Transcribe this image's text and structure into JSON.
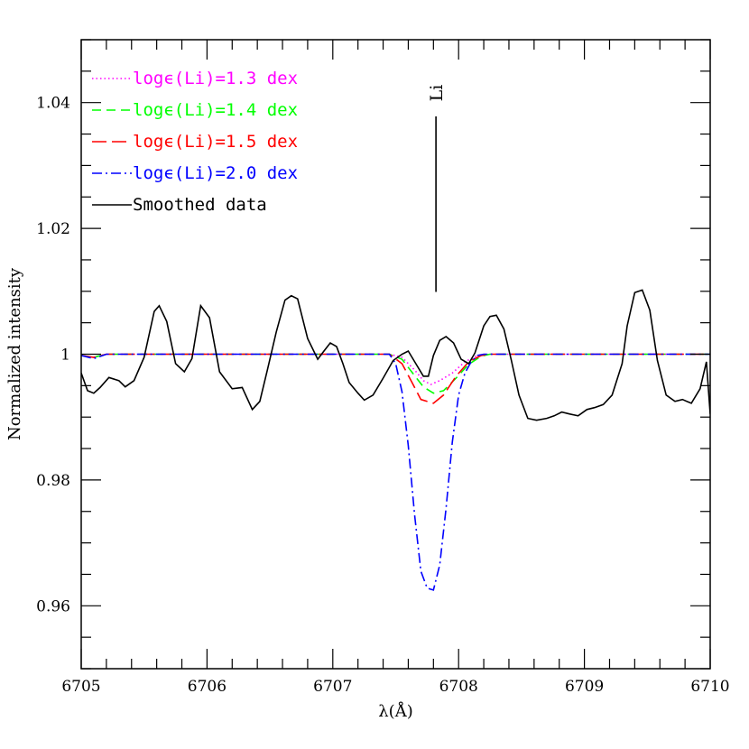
{
  "chart_data": {
    "type": "line",
    "title": "",
    "xlabel": "λ(Å)",
    "ylabel": "Normalized intensity",
    "xlim": [
      6705,
      6710
    ],
    "ylim": [
      0.95,
      1.05
    ],
    "x_ticks": [
      6705,
      6706,
      6707,
      6708,
      6709,
      6710
    ],
    "x_tick_labels": [
      "6705",
      "6706",
      "6707",
      "6708",
      "6709",
      "6710"
    ],
    "y_ticks": [
      0.96,
      0.98,
      1.0,
      1.02,
      1.04
    ],
    "y_tick_labels": [
      "0.96",
      "0.98",
      "1",
      "1.02",
      "1.04"
    ],
    "grid": false,
    "legend_position": "top-left",
    "annotations": [
      {
        "text": "Li",
        "x": 6707.82,
        "line_from": 1.0099,
        "line_to": 1.0378
      }
    ],
    "series": [
      {
        "name": "logϵ(Li)=1.3 dex",
        "color": "#ff00ff",
        "style": "dotted",
        "x": [
          6705.0,
          6705.1,
          6705.2,
          6707.45,
          6707.55,
          6707.65,
          6707.72,
          6707.78,
          6707.85,
          6707.95,
          6708.05,
          6708.15,
          6708.25,
          6710.0
        ],
        "y": [
          0.9998,
          0.9995,
          1.0,
          1.0,
          0.9995,
          0.9975,
          0.9958,
          0.9952,
          0.9958,
          0.997,
          0.9988,
          0.9998,
          1.0,
          1.0
        ]
      },
      {
        "name": "logϵ(Li)=1.4 dex",
        "color": "#00ff00",
        "style": "dashed",
        "x": [
          6705.0,
          6705.1,
          6705.2,
          6707.45,
          6707.55,
          6707.65,
          6707.72,
          6707.8,
          6707.88,
          6707.98,
          6708.08,
          6708.18,
          6708.25,
          6710.0
        ],
        "y": [
          0.9998,
          0.9995,
          1.0,
          1.0,
          0.9992,
          0.9966,
          0.9948,
          0.9938,
          0.9942,
          0.9962,
          0.9984,
          0.9997,
          1.0,
          1.0
        ]
      },
      {
        "name": "logϵ(Li)=1.5 dex",
        "color": "#ff0000",
        "style": "longdash",
        "x": [
          6705.0,
          6705.1,
          6705.2,
          6707.45,
          6707.55,
          6707.63,
          6707.7,
          6707.8,
          6707.88,
          6707.98,
          6708.08,
          6708.18,
          6708.25,
          6710.0
        ],
        "y": [
          0.9998,
          0.9995,
          1.0,
          1.0,
          0.9985,
          0.9955,
          0.9928,
          0.9922,
          0.9935,
          0.9965,
          0.9988,
          0.9998,
          1.0,
          1.0
        ]
      },
      {
        "name": "logϵ(Li)=2.0 dex",
        "color": "#0000ff",
        "style": "dashdot",
        "x": [
          6705.0,
          6705.1,
          6705.2,
          6707.45,
          6707.5,
          6707.55,
          6707.6,
          6707.65,
          6707.7,
          6707.75,
          6707.8,
          6707.85,
          6707.9,
          6707.95,
          6708.0,
          6708.05,
          6708.1,
          6708.15,
          6708.2,
          6710.0
        ],
        "y": [
          0.9998,
          0.9993,
          1.0,
          1.0,
          0.9985,
          0.994,
          0.9855,
          0.9745,
          0.9655,
          0.9628,
          0.9625,
          0.9665,
          0.9755,
          0.986,
          0.9935,
          0.997,
          0.9988,
          0.9998,
          1.0,
          1.0
        ]
      },
      {
        "name": "Smoothed data",
        "color": "#000000",
        "style": "solid",
        "x": [
          6705.0,
          6705.05,
          6705.1,
          6705.15,
          6705.22,
          6705.3,
          6705.35,
          6705.42,
          6705.5,
          6705.58,
          6705.62,
          6705.68,
          6705.75,
          6705.82,
          6705.88,
          6705.95,
          6706.02,
          6706.1,
          6706.2,
          6706.28,
          6706.36,
          6706.42,
          6706.48,
          6706.55,
          6706.62,
          6706.67,
          6706.72,
          6706.8,
          6706.88,
          6706.93,
          6706.98,
          6707.03,
          6707.08,
          6707.13,
          6707.2,
          6707.25,
          6707.32,
          6707.4,
          6707.48,
          6707.55,
          6707.6,
          6707.66,
          6707.72,
          6707.76,
          6707.8,
          6707.85,
          6707.9,
          6707.96,
          6708.02,
          6708.08,
          6708.13,
          6708.2,
          6708.25,
          6708.3,
          6708.36,
          6708.42,
          6708.48,
          6708.55,
          6708.62,
          6708.7,
          6708.76,
          6708.82,
          6708.88,
          6708.95,
          6709.02,
          6709.08,
          6709.15,
          6709.22,
          6709.3,
          6709.34,
          6709.4,
          6709.46,
          6709.52,
          6709.58,
          6709.65,
          6709.72,
          6709.78,
          6709.85,
          6709.92,
          6709.97,
          6710.0
        ],
        "y": [
          0.997,
          0.9942,
          0.9938,
          0.9947,
          0.9963,
          0.9958,
          0.9948,
          0.9958,
          0.9995,
          1.0068,
          1.0077,
          1.0052,
          0.9985,
          0.9972,
          0.9993,
          1.0077,
          1.0058,
          0.9972,
          0.9945,
          0.9947,
          0.9912,
          0.9925,
          0.9975,
          1.0035,
          1.0086,
          1.0093,
          1.0088,
          1.0025,
          0.9992,
          1.0005,
          1.0018,
          1.0012,
          0.9985,
          0.9955,
          0.9938,
          0.9927,
          0.9935,
          0.9962,
          0.999,
          1.0,
          1.0005,
          0.9985,
          0.9965,
          0.9965,
          0.9998,
          1.0022,
          1.0028,
          1.0018,
          0.9992,
          0.9985,
          1.0002,
          1.0045,
          1.006,
          1.0062,
          1.004,
          0.999,
          0.9935,
          0.9898,
          0.9895,
          0.9898,
          0.9902,
          0.9908,
          0.9905,
          0.9902,
          0.9912,
          0.9915,
          0.992,
          0.9935,
          0.9985,
          1.0045,
          1.0098,
          1.0102,
          1.007,
          0.999,
          0.9935,
          0.9925,
          0.9928,
          0.9922,
          0.9945,
          0.9988,
          0.9905
        ]
      }
    ]
  }
}
